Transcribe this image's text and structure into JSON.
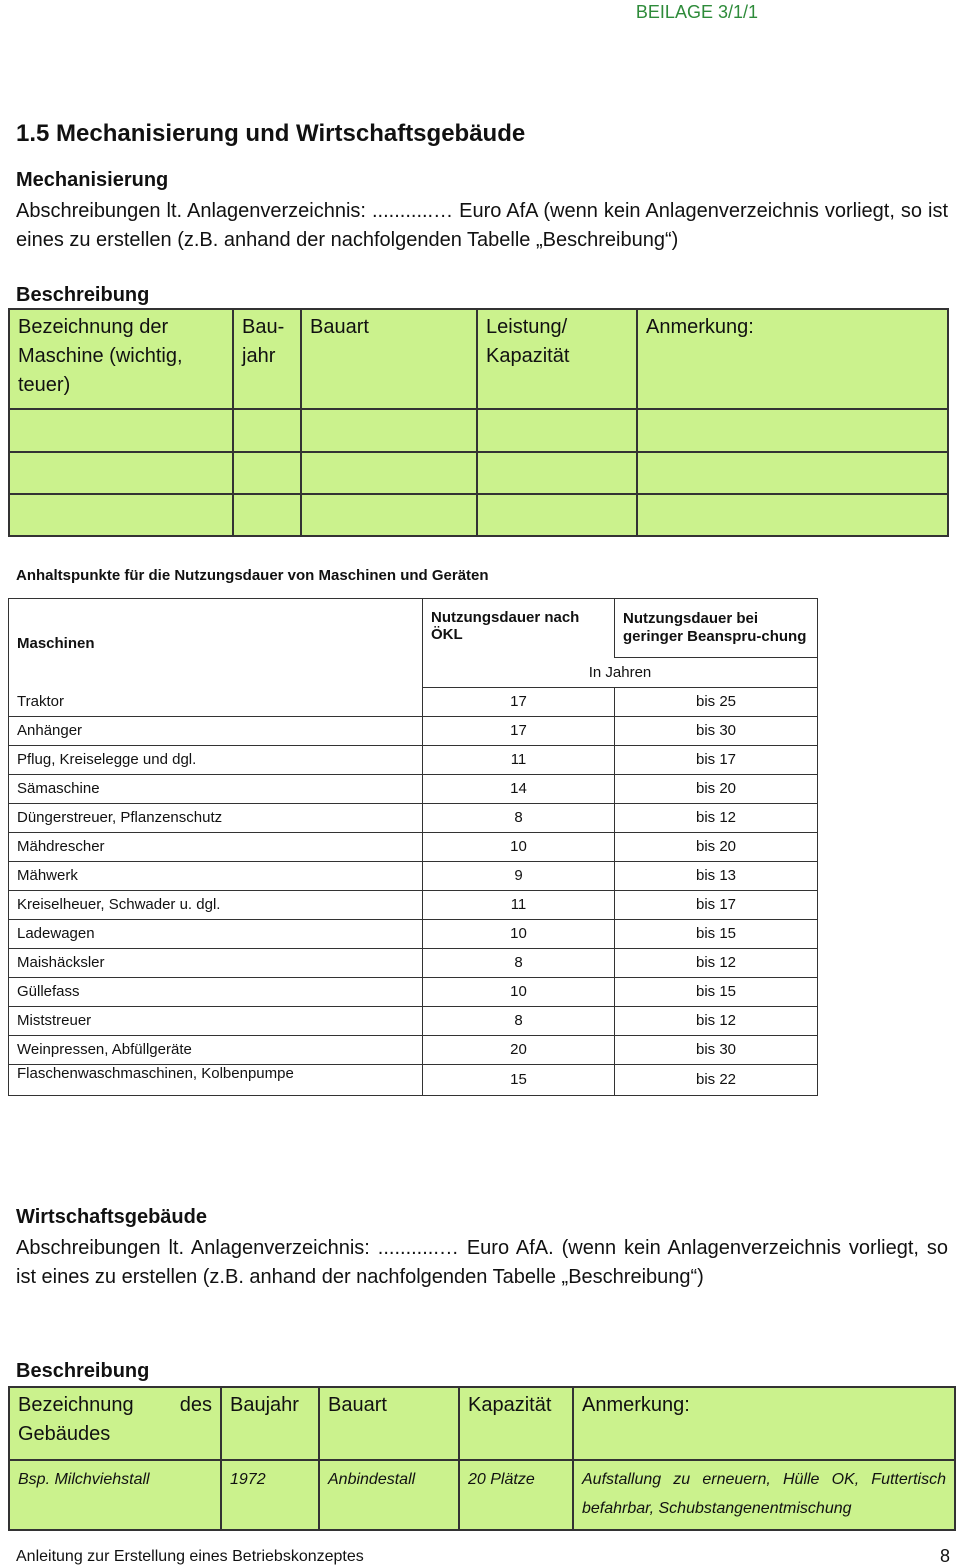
{
  "header": {
    "beilage": "BEILAGE 3/1/1"
  },
  "section_title": "1.5 Mechanisierung und Wirtschaftsgebäude",
  "mechanisierung": {
    "heading": "Mechanisierung",
    "text": "Abschreibungen lt. Anlagenverzeichnis: ...........… Euro AfA (wenn kein Anlagenver­zeichnis vorliegt, so ist eines zu erstellen (z.B. anhand der nachfolgenden Tabelle „Beschreibung“)"
  },
  "machine_table": {
    "caption": "Beschreibung",
    "headers": [
      "Bezeichnung der Maschine (wichtig, teuer)",
      "Bau-jahr",
      "Bauart",
      "Leistung/ Kapazität",
      "Anmerkung:"
    ]
  },
  "nutzungsdauer": {
    "title": "Anhaltspunkte für die Nutzungsdauer von Maschinen und Geräten",
    "headers": [
      "Maschinen",
      "Nutzungsdauer nach ÖKL",
      "Nutzungsdauer bei geringer Beanspru-chung"
    ],
    "unit": "In Jahren",
    "rows": [
      [
        "Traktor",
        17,
        "bis 25"
      ],
      [
        "Anhänger",
        17,
        "bis 30"
      ],
      [
        "Pflug, Kreiselegge und dgl.",
        11,
        "bis 17"
      ],
      [
        "Sämaschine",
        14,
        "bis 20"
      ],
      [
        "Düngerstreuer, Pflanzenschutz",
        8,
        "bis 12"
      ],
      [
        "Mähdrescher",
        10,
        "bis 20"
      ],
      [
        "Mähwerk",
        9,
        "bis 13"
      ],
      [
        "Kreiselheuer, Schwader u. dgl.",
        11,
        "bis 17"
      ],
      [
        "Ladewagen",
        10,
        "bis 15"
      ],
      [
        "Maishäcksler",
        8,
        "bis 12"
      ],
      [
        "Güllefass",
        10,
        "bis 15"
      ],
      [
        "Miststreuer",
        8,
        "bis 12"
      ],
      [
        "Weinpressen, Abfüllgeräte",
        20,
        "bis 30"
      ],
      [
        "Flaschenwaschmaschinen, Kolbenpumpe",
        15,
        "bis 22"
      ]
    ]
  },
  "wirtschaftsgebaeude": {
    "heading": "Wirtschaftsgebäude",
    "text": "Abschreibungen lt. Anlagenverzeichnis: ...........… Euro AfA. (wenn kein Anlagenverzeichnis vorliegt, so ist eines zu erstellen (z.B. anhand der nachfolgenden Tabelle „Beschreibung“)"
  },
  "building_table": {
    "caption": "Beschreibung",
    "headers": [
      "Bezeichnung des Gebäudes",
      "Baujahr",
      "Bauart",
      "Kapazität",
      "Anmerkung:"
    ],
    "example": [
      "Bsp. Milchviehstall",
      "1972",
      "Anbindestall",
      "20 Plätze",
      "Aufstallung zu erneuern, Hülle OK, Futtertisch befahrbar, Schubstangenentmischung"
    ]
  },
  "footer": {
    "text": "Anleitung zur Erstellung eines Betriebskonzeptes",
    "page": "8"
  }
}
